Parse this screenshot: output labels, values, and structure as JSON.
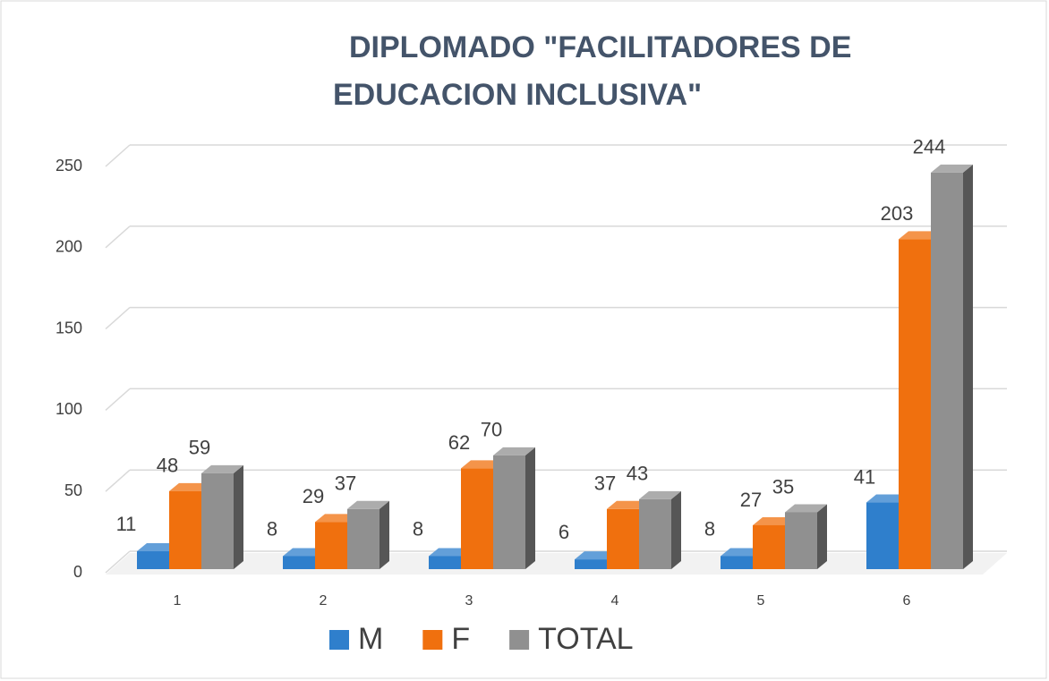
{
  "chart_data": {
    "type": "bar3d",
    "title": [
      "DIPLOMADO \"FACILITADORES DE",
      "EDUCACION INCLUSIVA\""
    ],
    "categories": [
      "1",
      "2",
      "3",
      "4",
      "5",
      "6"
    ],
    "series": [
      {
        "name": "M",
        "color": "#2f7fcc",
        "values": [
          11,
          8,
          8,
          6,
          8,
          41
        ]
      },
      {
        "name": "F",
        "color": "#f0700e",
        "values": [
          48,
          29,
          62,
          37,
          27,
          203
        ]
      },
      {
        "name": "TOTAL",
        "color": "#909090",
        "values": [
          59,
          37,
          70,
          43,
          35,
          244
        ]
      }
    ],
    "ylim": [
      0,
      250
    ],
    "yticks": [
      0,
      50,
      100,
      150,
      200,
      250
    ],
    "grid": true,
    "legend": "bottom"
  }
}
